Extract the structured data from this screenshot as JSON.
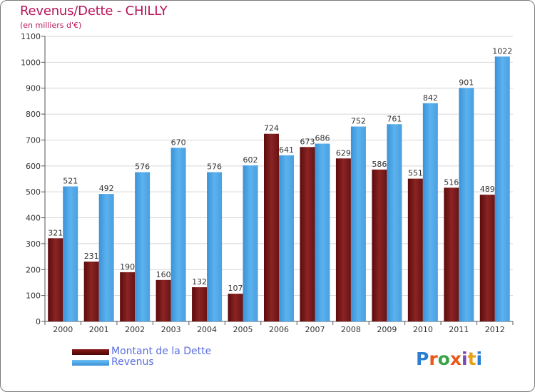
{
  "title": "Revenus/Dette - CHILLY",
  "subtitle": "(en milliers d'€)",
  "legend": {
    "dette": "Montant de la Dette",
    "revenus": "Revenus"
  },
  "logo": {
    "letters": [
      "P",
      "r",
      "o",
      "x",
      "i",
      "t",
      "i"
    ],
    "colors": [
      "#2a7fd0",
      "#e8591a",
      "#3aa24a",
      "#e8591a",
      "#7a4ab0",
      "#e8a01a",
      "#2a7fd0"
    ]
  },
  "colors": {
    "dette": "#7a1a1a",
    "revenus": "#4aa3e6",
    "title": "#b8145a"
  },
  "chart_data": {
    "type": "bar",
    "title": "Revenus/Dette - CHILLY",
    "subtitle": "(en milliers d'€)",
    "categories": [
      "2000",
      "2001",
      "2002",
      "2003",
      "2004",
      "2005",
      "2006",
      "2007",
      "2008",
      "2009",
      "2010",
      "2011",
      "2012"
    ],
    "series": [
      {
        "name": "Montant de la Dette",
        "values": [
          321,
          231,
          190,
          160,
          132,
          107,
          724,
          673,
          629,
          586,
          551,
          516,
          489
        ]
      },
      {
        "name": "Revenus",
        "values": [
          521,
          492,
          576,
          670,
          576,
          602,
          641,
          686,
          752,
          761,
          842,
          901,
          1022
        ]
      }
    ],
    "ylim": [
      0,
      1100
    ],
    "yticks": [
      0,
      100,
      200,
      300,
      400,
      500,
      600,
      700,
      800,
      900,
      1000,
      1100
    ],
    "grid": true,
    "legend_position": "bottom-left"
  }
}
